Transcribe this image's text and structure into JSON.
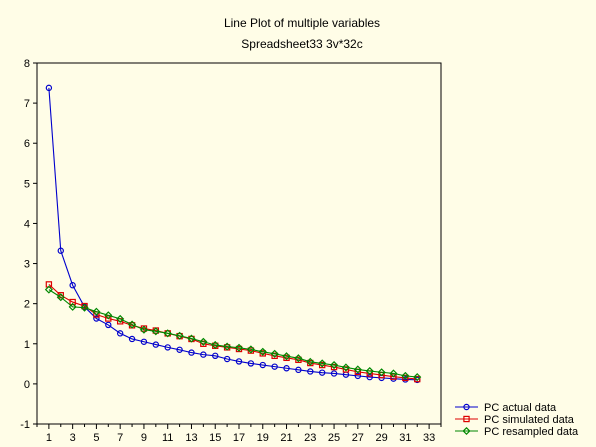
{
  "chart_data": {
    "type": "line",
    "title": "Line Plot of multiple variables",
    "subtitle": "Spreadsheet33 3v*32c",
    "xlabel": "",
    "ylabel": "",
    "xlim": [
      0,
      34
    ],
    "ylim": [
      -1,
      8
    ],
    "x_ticks": [
      1,
      3,
      5,
      7,
      9,
      11,
      13,
      15,
      17,
      19,
      21,
      23,
      25,
      27,
      29,
      31,
      33
    ],
    "y_ticks": [
      -1,
      0,
      1,
      2,
      3,
      4,
      5,
      6,
      7,
      8
    ],
    "grid": false,
    "legend_position": "bottom-right",
    "x": [
      1,
      2,
      3,
      4,
      5,
      6,
      7,
      8,
      9,
      10,
      11,
      12,
      13,
      14,
      15,
      16,
      17,
      18,
      19,
      20,
      21,
      22,
      23,
      24,
      25,
      26,
      27,
      28,
      29,
      30,
      31,
      32
    ],
    "series": [
      {
        "name": "PC actual data",
        "color": "#0000cc",
        "marker": "circle",
        "values": [
          7.38,
          3.32,
          2.46,
          1.92,
          1.63,
          1.47,
          1.26,
          1.12,
          1.05,
          0.98,
          0.91,
          0.85,
          0.78,
          0.73,
          0.7,
          0.62,
          0.56,
          0.51,
          0.47,
          0.43,
          0.39,
          0.35,
          0.31,
          0.28,
          0.26,
          0.23,
          0.2,
          0.17,
          0.15,
          0.13,
          0.11,
          0.1
        ]
      },
      {
        "name": "PC simulated data",
        "color": "#dd0000",
        "marker": "square",
        "values": [
          2.48,
          2.21,
          2.04,
          1.94,
          1.73,
          1.63,
          1.56,
          1.46,
          1.38,
          1.33,
          1.26,
          1.19,
          1.12,
          1.0,
          0.95,
          0.91,
          0.87,
          0.83,
          0.76,
          0.7,
          0.65,
          0.6,
          0.52,
          0.47,
          0.42,
          0.36,
          0.3,
          0.26,
          0.22,
          0.18,
          0.15,
          0.12
        ]
      },
      {
        "name": "PC resampled data",
        "color": "#008800",
        "marker": "diamond",
        "values": [
          2.35,
          2.16,
          1.92,
          1.9,
          1.8,
          1.71,
          1.62,
          1.48,
          1.35,
          1.31,
          1.26,
          1.2,
          1.13,
          1.05,
          0.97,
          0.93,
          0.9,
          0.86,
          0.8,
          0.75,
          0.69,
          0.64,
          0.55,
          0.51,
          0.47,
          0.41,
          0.36,
          0.32,
          0.29,
          0.26,
          0.2,
          0.17
        ]
      }
    ]
  }
}
